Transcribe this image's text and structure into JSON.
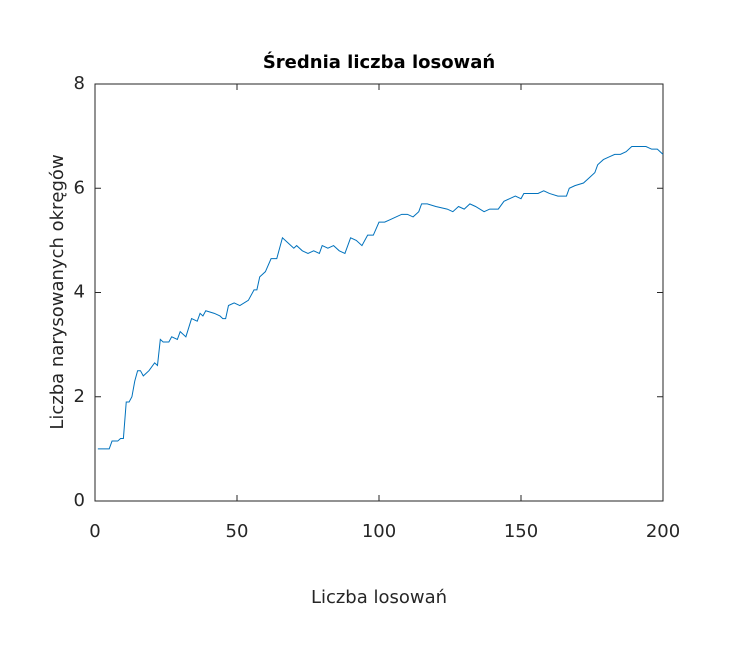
{
  "chart_data": {
    "type": "line",
    "title": "Średnia liczba losowań",
    "x_label": "Liczba losowań",
    "y_label": "Liczba narysowanych okręgów",
    "x": [
      1,
      5,
      6,
      8,
      9,
      10,
      11,
      12,
      13,
      14,
      15,
      16,
      17,
      19,
      21,
      22,
      23,
      24,
      26,
      27,
      29,
      30,
      32,
      34,
      36,
      37,
      38,
      39,
      42,
      44,
      45,
      46,
      47,
      49,
      51,
      54,
      56,
      57,
      58,
      60,
      62,
      64,
      66,
      68,
      70,
      71,
      73,
      75,
      77,
      79,
      80,
      82,
      84,
      86,
      88,
      90,
      92,
      94,
      96,
      98,
      100,
      102,
      104,
      106,
      108,
      110,
      112,
      114,
      115,
      117,
      120,
      124,
      126,
      128,
      130,
      132,
      134,
      137,
      139,
      142,
      144,
      146,
      148,
      150,
      151,
      153,
      156,
      158,
      160,
      163,
      166,
      167,
      169,
      172,
      174,
      176,
      177,
      179,
      181,
      183,
      185,
      187,
      189,
      192,
      194,
      196,
      198,
      200
    ],
    "series": [
      {
        "color": "#0072bd",
        "values": [
          1.0,
          1.0,
          1.15,
          1.15,
          1.2,
          1.2,
          1.9,
          1.9,
          2.0,
          2.3,
          2.5,
          2.5,
          2.4,
          2.5,
          2.65,
          2.6,
          3.1,
          3.05,
          3.05,
          3.15,
          3.1,
          3.25,
          3.15,
          3.5,
          3.45,
          3.6,
          3.55,
          3.65,
          3.6,
          3.55,
          3.5,
          3.5,
          3.75,
          3.8,
          3.75,
          3.85,
          4.05,
          4.05,
          4.3,
          4.4,
          4.65,
          4.65,
          5.05,
          4.95,
          4.85,
          4.9,
          4.8,
          4.75,
          4.8,
          4.75,
          4.9,
          4.85,
          4.9,
          4.8,
          4.75,
          5.05,
          5.0,
          4.9,
          5.1,
          5.1,
          5.35,
          5.35,
          5.4,
          5.45,
          5.5,
          5.5,
          5.45,
          5.55,
          5.7,
          5.7,
          5.65,
          5.6,
          5.55,
          5.65,
          5.6,
          5.7,
          5.65,
          5.55,
          5.6,
          5.6,
          5.75,
          5.8,
          5.85,
          5.8,
          5.9,
          5.9,
          5.9,
          5.95,
          5.9,
          5.85,
          5.85,
          6.0,
          6.05,
          6.1,
          6.2,
          6.3,
          6.45,
          6.55,
          6.6,
          6.65,
          6.65,
          6.7,
          6.8,
          6.8,
          6.8,
          6.75,
          6.75,
          6.65
        ]
      }
    ],
    "xlim": [
      0,
      200
    ],
    "xticks": [
      0,
      50,
      100,
      150,
      200
    ],
    "ylim": [
      0,
      8
    ],
    "yticks": [
      0,
      2,
      4,
      6,
      8
    ],
    "grid": false
  }
}
